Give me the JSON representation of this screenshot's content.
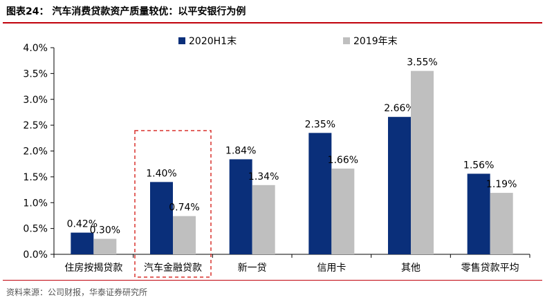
{
  "header": {
    "title": "图表24：  汽车消费贷款资产质量较优：以平安银行为例"
  },
  "footer": {
    "source": "资料来源：公司财报，华泰证券研究所"
  },
  "colors": {
    "series_2020": "#0a2f7a",
    "series_2019": "#bfbfbf",
    "highlight": "#d9302c",
    "rule": "#c0000a"
  },
  "chart_data": {
    "type": "bar",
    "categories": [
      "住房按揭贷款",
      "汽车金融贷款",
      "新一贷",
      "信用卡",
      "其他",
      "零售贷款平均"
    ],
    "series": [
      {
        "name": "2020H1末",
        "values": [
          0.42,
          1.4,
          1.84,
          2.35,
          2.66,
          1.56
        ],
        "labels": [
          "0.42%",
          "1.40%",
          "1.84%",
          "2.35%",
          "2.66%",
          "1.56%"
        ]
      },
      {
        "name": "2019年末",
        "values": [
          0.3,
          0.74,
          1.34,
          1.66,
          3.55,
          1.19
        ],
        "labels": [
          "0.30%",
          "0.74%",
          "1.34%",
          "1.66%",
          "3.55%",
          "1.19%"
        ]
      }
    ],
    "y_ticks": [
      "0.0%",
      "0.5%",
      "1.0%",
      "1.5%",
      "2.0%",
      "2.5%",
      "3.0%",
      "3.5%",
      "4.0%"
    ],
    "ylim": [
      0,
      4.0
    ],
    "legend": "top-center",
    "grid": false,
    "highlight_category": "汽车金融贷款"
  }
}
